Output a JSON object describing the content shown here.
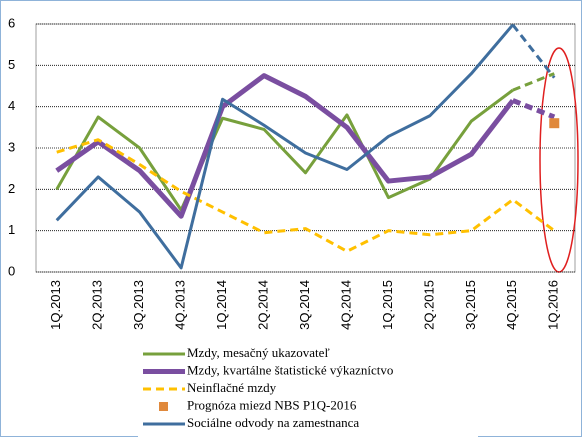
{
  "chart_data": {
    "type": "line",
    "categories": [
      "1Q.2013",
      "2Q.2013",
      "3Q.2013",
      "4Q.2013",
      "1Q.2014",
      "2Q.2014",
      "3Q.2014",
      "4Q.2014",
      "1Q.2015",
      "2Q.2015",
      "3Q.2015",
      "4Q.2015",
      "1Q.2016"
    ],
    "series": [
      {
        "name": "Mzdy, mesačný ukazovateľ",
        "color": "#77a03c",
        "width": 3,
        "dash_last": true,
        "values": [
          2.0,
          3.75,
          3.0,
          1.5,
          3.72,
          3.45,
          2.4,
          3.8,
          1.8,
          2.25,
          3.65,
          4.4,
          4.8
        ]
      },
      {
        "name": "Mzdy, kvartálne štatistické výkazníctvo",
        "color": "#7a4ea0",
        "width": 5,
        "dash_last": true,
        "values": [
          2.45,
          3.15,
          2.45,
          1.35,
          4.0,
          4.75,
          4.25,
          3.5,
          2.2,
          2.3,
          2.85,
          4.15,
          3.75
        ]
      },
      {
        "name": "Neinflačné mzdy",
        "color": "#ffc000",
        "width": 3,
        "dash": true,
        "values": [
          2.9,
          3.2,
          2.6,
          1.95,
          1.45,
          0.95,
          1.05,
          0.5,
          1.0,
          0.9,
          1.0,
          1.75,
          1.0
        ]
      },
      {
        "name": "Prognóza miezd NBS P1Q-2016",
        "color": "#e0893c",
        "marker": "square",
        "values": [
          null,
          null,
          null,
          null,
          null,
          null,
          null,
          null,
          null,
          null,
          null,
          null,
          3.6
        ]
      },
      {
        "name": "Sociálne odvody na zamestnanca",
        "color": "#3f6e9e",
        "width": 3,
        "dash_last": true,
        "values": [
          1.25,
          2.3,
          1.45,
          0.1,
          4.18,
          3.55,
          2.88,
          2.48,
          3.28,
          3.78,
          4.8,
          5.98,
          4.7
        ]
      }
    ],
    "ylim": [
      0,
      6
    ],
    "yticks": [
      0,
      1,
      2,
      3,
      4,
      5,
      6
    ],
    "grid": true,
    "legend": "bottom"
  }
}
